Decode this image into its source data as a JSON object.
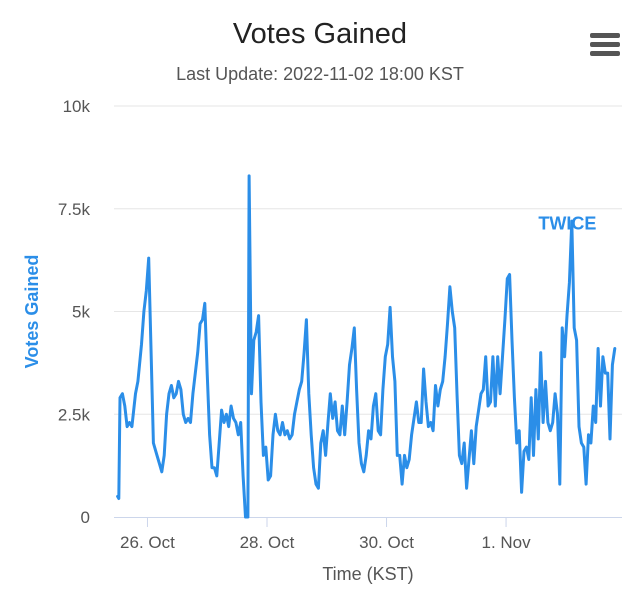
{
  "header": {
    "title": "Votes Gained",
    "subtitle": "Last Update: 2022-11-02 18:00 KST"
  },
  "menu": {
    "icon": "hamburger-menu-icon"
  },
  "colors": {
    "series": "#2b8ee8",
    "grid": "#e6e6e6",
    "axis": "#ccd6eb"
  },
  "chart_data": {
    "type": "line",
    "title": "Votes Gained",
    "subtitle": "Last Update: 2022-11-02 18:00 KST",
    "xlabel": "Time (KST)",
    "ylabel": "Votes Gained",
    "ylim": [
      0,
      10000
    ],
    "xlim": [
      -0.28,
      3.97
    ],
    "yticks": [
      {
        "value": 0,
        "label": "0"
      },
      {
        "value": 2500,
        "label": "2.5k"
      },
      {
        "value": 5000,
        "label": "5k"
      },
      {
        "value": 7500,
        "label": "7.5k"
      },
      {
        "value": 10000,
        "label": "10k"
      }
    ],
    "xticks": [
      {
        "value": 0,
        "label": "26. Oct"
      },
      {
        "value": 1,
        "label": "28. Oct"
      },
      {
        "value": 2,
        "label": "30. Oct"
      },
      {
        "value": 3,
        "label": "1. Nov"
      }
    ],
    "x_unit": "2-day intervals from 26. Oct",
    "series": [
      {
        "name": "TWICE",
        "points": [
          [
            -0.25,
            500
          ],
          [
            -0.24,
            450
          ],
          [
            -0.23,
            2900
          ],
          [
            -0.21,
            3000
          ],
          [
            -0.19,
            2700
          ],
          [
            -0.17,
            2200
          ],
          [
            -0.15,
            2300
          ],
          [
            -0.13,
            2200
          ],
          [
            -0.1,
            3000
          ],
          [
            -0.08,
            3300
          ],
          [
            -0.05,
            4200
          ],
          [
            -0.03,
            5000
          ],
          [
            -0.01,
            5500
          ],
          [
            0.01,
            6300
          ],
          [
            0.03,
            4000
          ],
          [
            0.05,
            1800
          ],
          [
            0.08,
            1500
          ],
          [
            0.1,
            1300
          ],
          [
            0.12,
            1100
          ],
          [
            0.14,
            1500
          ],
          [
            0.16,
            2500
          ],
          [
            0.18,
            3000
          ],
          [
            0.2,
            3200
          ],
          [
            0.22,
            2900
          ],
          [
            0.24,
            3000
          ],
          [
            0.26,
            3300
          ],
          [
            0.28,
            3100
          ],
          [
            0.3,
            2500
          ],
          [
            0.32,
            2300
          ],
          [
            0.34,
            2400
          ],
          [
            0.36,
            2300
          ],
          [
            0.38,
            3000
          ],
          [
            0.4,
            3500
          ],
          [
            0.42,
            4000
          ],
          [
            0.44,
            4700
          ],
          [
            0.46,
            4800
          ],
          [
            0.48,
            5200
          ],
          [
            0.5,
            3500
          ],
          [
            0.52,
            2000
          ],
          [
            0.54,
            1200
          ],
          [
            0.56,
            1200
          ],
          [
            0.58,
            1000
          ],
          [
            0.6,
            1800
          ],
          [
            0.62,
            2600
          ],
          [
            0.64,
            2300
          ],
          [
            0.66,
            2500
          ],
          [
            0.68,
            2200
          ],
          [
            0.7,
            2700
          ],
          [
            0.72,
            2400
          ],
          [
            0.74,
            2300
          ],
          [
            0.76,
            2000
          ],
          [
            0.78,
            2300
          ],
          [
            0.8,
            1000
          ],
          [
            0.82,
            0
          ],
          [
            0.84,
            0
          ],
          [
            0.85,
            8300
          ],
          [
            0.87,
            3000
          ],
          [
            0.89,
            4300
          ],
          [
            0.91,
            4500
          ],
          [
            0.93,
            4900
          ],
          [
            0.95,
            2800
          ],
          [
            0.97,
            1500
          ],
          [
            0.99,
            1700
          ],
          [
            1.01,
            900
          ],
          [
            1.03,
            1000
          ],
          [
            1.05,
            2000
          ],
          [
            1.07,
            2500
          ],
          [
            1.09,
            2100
          ],
          [
            1.11,
            2000
          ],
          [
            1.13,
            2300
          ],
          [
            1.15,
            2000
          ],
          [
            1.17,
            2100
          ],
          [
            1.19,
            1900
          ],
          [
            1.21,
            2000
          ],
          [
            1.23,
            2500
          ],
          [
            1.25,
            2800
          ],
          [
            1.27,
            3100
          ],
          [
            1.29,
            3300
          ],
          [
            1.31,
            4000
          ],
          [
            1.33,
            4800
          ],
          [
            1.35,
            3000
          ],
          [
            1.37,
            2000
          ],
          [
            1.39,
            1200
          ],
          [
            1.41,
            800
          ],
          [
            1.43,
            700
          ],
          [
            1.45,
            1800
          ],
          [
            1.47,
            2100
          ],
          [
            1.49,
            1500
          ],
          [
            1.51,
            2300
          ],
          [
            1.53,
            3000
          ],
          [
            1.55,
            2400
          ],
          [
            1.57,
            2800
          ],
          [
            1.59,
            2100
          ],
          [
            1.61,
            2000
          ],
          [
            1.63,
            2700
          ],
          [
            1.65,
            2000
          ],
          [
            1.67,
            2800
          ],
          [
            1.69,
            3700
          ],
          [
            1.71,
            4100
          ],
          [
            1.73,
            4600
          ],
          [
            1.75,
            3100
          ],
          [
            1.77,
            1800
          ],
          [
            1.79,
            1300
          ],
          [
            1.81,
            1100
          ],
          [
            1.83,
            1500
          ],
          [
            1.85,
            2100
          ],
          [
            1.87,
            1900
          ],
          [
            1.89,
            2700
          ],
          [
            1.91,
            3000
          ],
          [
            1.93,
            2100
          ],
          [
            1.95,
            2000
          ],
          [
            1.97,
            3100
          ],
          [
            1.99,
            3900
          ],
          [
            2.01,
            4200
          ],
          [
            2.03,
            5100
          ],
          [
            2.05,
            3900
          ],
          [
            2.07,
            3300
          ],
          [
            2.09,
            1500
          ],
          [
            2.11,
            1500
          ],
          [
            2.13,
            800
          ],
          [
            2.15,
            1500
          ],
          [
            2.17,
            1200
          ],
          [
            2.19,
            1400
          ],
          [
            2.21,
            2000
          ],
          [
            2.23,
            2400
          ],
          [
            2.25,
            2800
          ],
          [
            2.27,
            2300
          ],
          [
            2.29,
            2300
          ],
          [
            2.31,
            3600
          ],
          [
            2.33,
            2800
          ],
          [
            2.35,
            2200
          ],
          [
            2.37,
            2300
          ],
          [
            2.39,
            2100
          ],
          [
            2.41,
            3200
          ],
          [
            2.43,
            2700
          ],
          [
            2.45,
            3100
          ],
          [
            2.47,
            3300
          ],
          [
            2.49,
            3900
          ],
          [
            2.51,
            4700
          ],
          [
            2.53,
            5600
          ],
          [
            2.55,
            5000
          ],
          [
            2.57,
            4600
          ],
          [
            2.59,
            3000
          ],
          [
            2.61,
            1500
          ],
          [
            2.63,
            1300
          ],
          [
            2.65,
            1800
          ],
          [
            2.67,
            700
          ],
          [
            2.69,
            1400
          ],
          [
            2.71,
            2100
          ],
          [
            2.73,
            1300
          ],
          [
            2.75,
            2200
          ],
          [
            2.77,
            2600
          ],
          [
            2.79,
            3000
          ],
          [
            2.81,
            3100
          ],
          [
            2.83,
            3900
          ],
          [
            2.85,
            2700
          ],
          [
            2.87,
            2800
          ],
          [
            2.89,
            3900
          ],
          [
            2.91,
            2700
          ],
          [
            2.93,
            3900
          ],
          [
            2.95,
            3000
          ],
          [
            2.97,
            3900
          ],
          [
            2.99,
            4800
          ],
          [
            3.01,
            5800
          ],
          [
            3.03,
            5900
          ],
          [
            3.05,
            4300
          ],
          [
            3.07,
            2900
          ],
          [
            3.09,
            1800
          ],
          [
            3.11,
            2100
          ],
          [
            3.13,
            600
          ],
          [
            3.15,
            1600
          ],
          [
            3.17,
            1700
          ],
          [
            3.19,
            1400
          ],
          [
            3.21,
            2900
          ],
          [
            3.23,
            1500
          ],
          [
            3.25,
            3100
          ],
          [
            3.27,
            1900
          ],
          [
            3.29,
            4000
          ],
          [
            3.31,
            2300
          ],
          [
            3.33,
            3300
          ],
          [
            3.35,
            2300
          ],
          [
            3.37,
            2100
          ],
          [
            3.39,
            2300
          ],
          [
            3.41,
            3000
          ],
          [
            3.43,
            2500
          ],
          [
            3.45,
            800
          ],
          [
            3.47,
            4600
          ],
          [
            3.49,
            3900
          ],
          [
            3.51,
            4900
          ],
          [
            3.53,
            5700
          ],
          [
            3.55,
            7200
          ],
          [
            3.57,
            4600
          ],
          [
            3.59,
            4300
          ],
          [
            3.61,
            2200
          ],
          [
            3.63,
            1800
          ],
          [
            3.65,
            1700
          ],
          [
            3.67,
            800
          ],
          [
            3.69,
            2000
          ],
          [
            3.71,
            1800
          ],
          [
            3.73,
            2700
          ],
          [
            3.75,
            2300
          ],
          [
            3.77,
            4100
          ],
          [
            3.79,
            2700
          ],
          [
            3.81,
            3900
          ],
          [
            3.83,
            3500
          ],
          [
            3.85,
            3500
          ],
          [
            3.87,
            1900
          ],
          [
            3.89,
            3700
          ],
          [
            3.91,
            4100
          ]
        ]
      }
    ],
    "annotations": [
      {
        "text": "TWICE",
        "x": 3.27,
        "y": 7000
      }
    ]
  }
}
